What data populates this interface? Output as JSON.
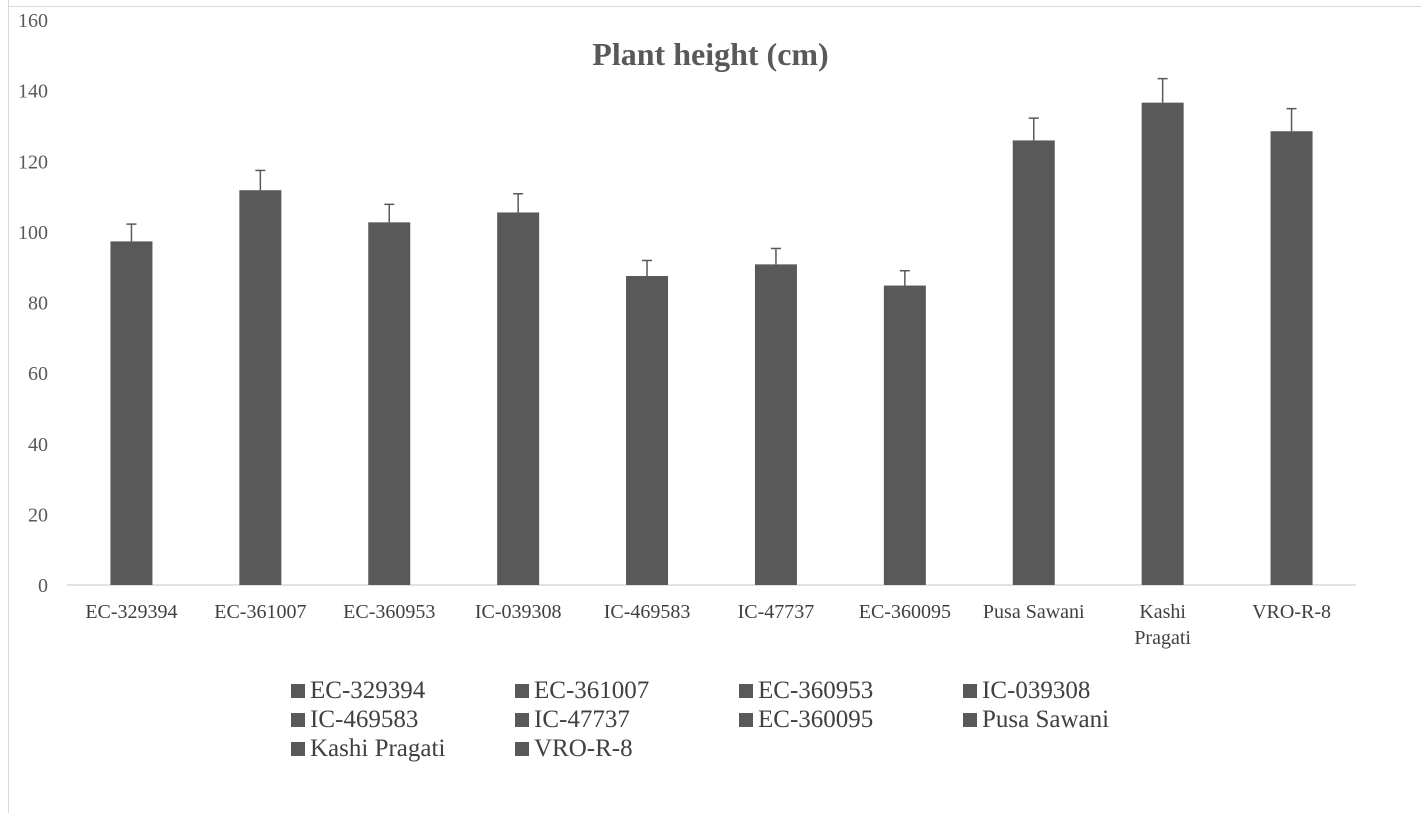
{
  "chart_data": {
    "type": "bar",
    "title": "Plant height (cm)",
    "xlabel": "",
    "ylabel": "",
    "ylim": [
      0,
      160
    ],
    "yticks": [
      "0",
      "20",
      "40",
      "60",
      "80",
      "100",
      "120",
      "140",
      "160"
    ],
    "categories": [
      "EC-329394",
      "EC-361007",
      "EC-360953",
      "IC-039308",
      "IC-469583",
      "IC-47737",
      "EC-360095",
      "Pusa Sawani",
      "Kashi Pragati",
      "VRO-R-8"
    ],
    "values": [
      97.3,
      111.8,
      102.7,
      105.5,
      87.5,
      90.8,
      84.8,
      125.9,
      136.6,
      128.5
    ],
    "error": [
      4.9,
      5.6,
      5.1,
      5.3,
      4.4,
      4.5,
      4.2,
      6.3,
      6.8,
      6.4
    ],
    "grid": false,
    "legend_position": "bottom",
    "bar_color": "#595959",
    "error_color": "#595959",
    "axis_color": "#d9d9d9",
    "text_color": "#595959"
  },
  "legend": {
    "items": [
      "EC-329394",
      "EC-361007",
      "EC-360953",
      "IC-039308",
      "IC-469583",
      "IC-47737",
      "EC-360095",
      "Pusa Sawani",
      "Kashi Pragati",
      "VRO-R-8"
    ]
  }
}
